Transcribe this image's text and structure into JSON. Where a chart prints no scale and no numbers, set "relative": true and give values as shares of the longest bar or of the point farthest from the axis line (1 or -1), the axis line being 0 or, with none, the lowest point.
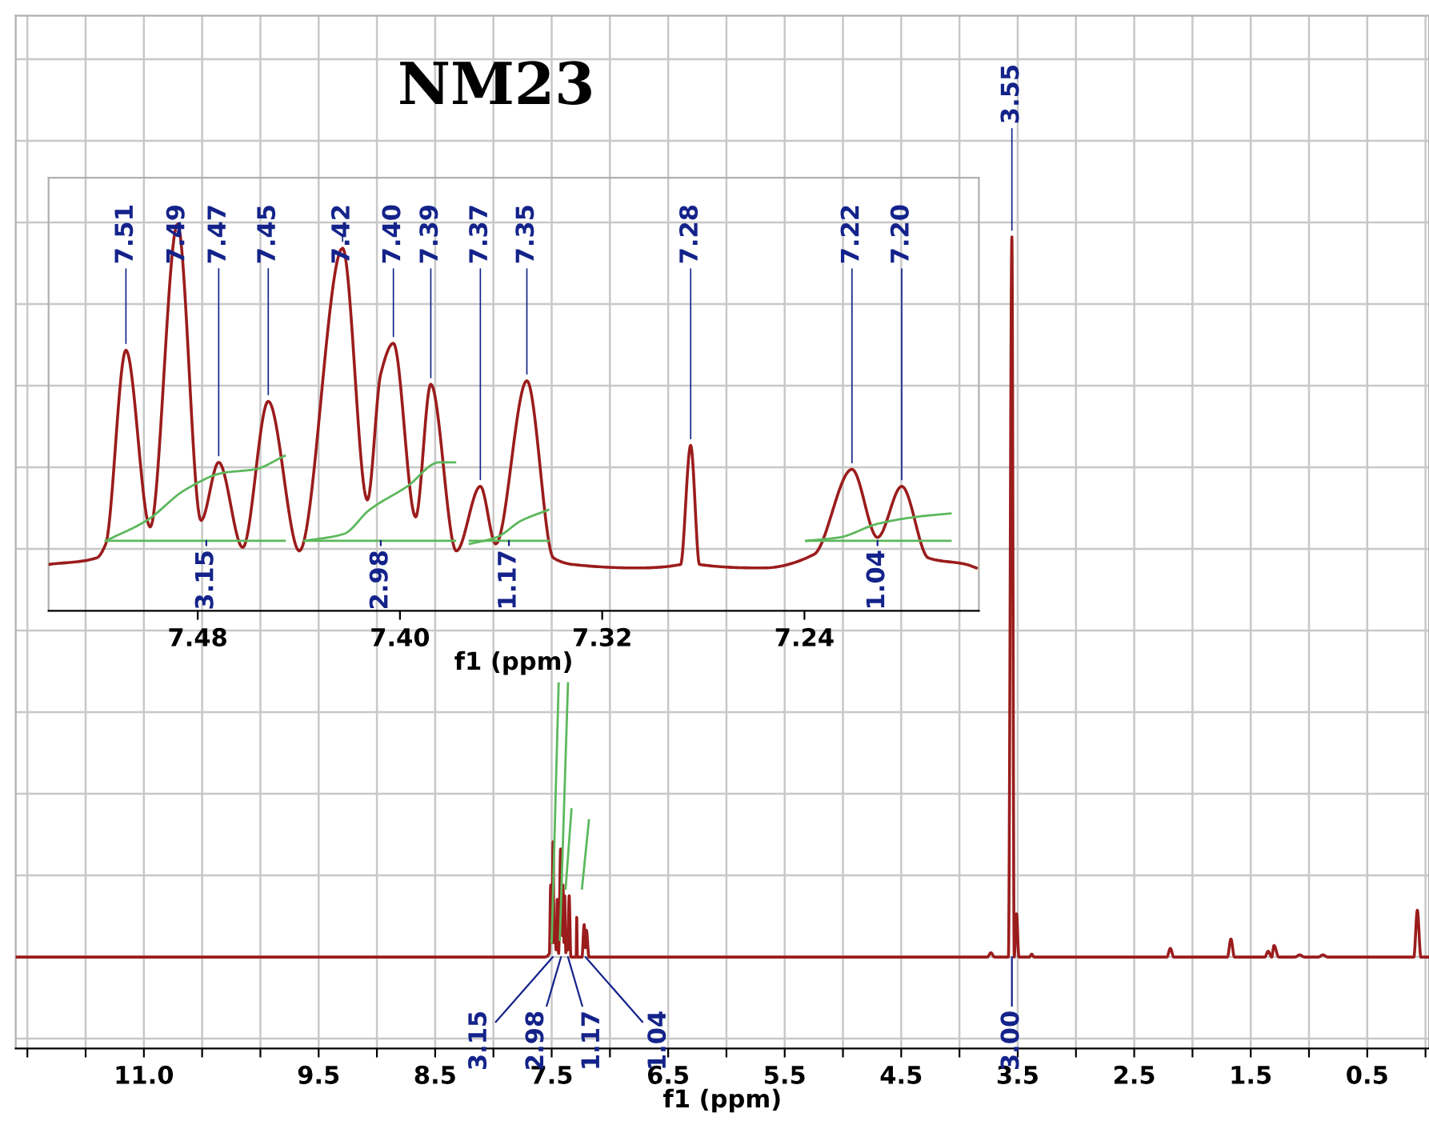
{
  "chart_data": [
    {
      "type": "line",
      "title": "NM23",
      "xlabel": "f1 (ppm)",
      "relative": true,
      "grid": true,
      "xlim": [
        12.1,
        -0.03
      ],
      "xticks": [
        {
          "value": 12,
          "label": null
        },
        {
          "value": 11.5,
          "label": null
        },
        {
          "value": 11,
          "label": "11.0"
        },
        {
          "value": 10.5,
          "label": null
        },
        {
          "value": 10,
          "label": null
        },
        9.5,
        {
          "value": 9,
          "label": null
        },
        8.5,
        {
          "value": 8,
          "label": null
        },
        7.5,
        {
          "value": 7,
          "label": null
        },
        6.5,
        {
          "value": 6,
          "label": null
        },
        5.5,
        {
          "value": 5,
          "label": null
        },
        4.5,
        {
          "value": 4,
          "label": null
        },
        3.5,
        {
          "value": 3,
          "label": null
        },
        2.5,
        {
          "value": 2,
          "label": null
        },
        1.5,
        {
          "value": 1,
          "label": null
        },
        0.5,
        {
          "value": 0,
          "label": null
        }
      ],
      "series": [
        {
          "color": "#9b1c1c",
          "x": [
            12.1,
            7.56,
            7.52,
            7.508,
            7.498,
            7.488,
            7.479,
            7.472,
            7.462,
            7.452,
            7.44,
            7.423,
            7.413,
            7.403,
            7.394,
            7.388,
            7.378,
            7.368,
            7.362,
            7.35,
            7.335,
            7.29,
            7.285,
            7.28,
            7.24,
            7.221,
            7.211,
            7.2015,
            7.18,
            3.76,
            3.73,
            3.7,
            3.58,
            3.55,
            3.53,
            3.51,
            3.49,
            3.4,
            3.38,
            3.36,
            2.22,
            2.19,
            2.16,
            1.7,
            1.67,
            1.64,
            1.38,
            1.35,
            1.32,
            1.3,
            1.26,
            1.12,
            1.08,
            1.04,
            0.92,
            0.88,
            0.84,
            0.1,
            0.07,
            0.04,
            -0.03
          ],
          "values": [
            0,
            0,
            0.005,
            0.1,
            0.02,
            0.16,
            0.02,
            0.05,
            0.01,
            0.08,
            0.005,
            0.15,
            0.03,
            0.1,
            0.02,
            0.085,
            0.006,
            0.037,
            0.01,
            0.085,
            0,
            0,
            0.055,
            0,
            0,
            0.045,
            0.013,
            0.037,
            0,
            0,
            0.006,
            0,
            0,
            1.0,
            0,
            0.06,
            0,
            0,
            0.004,
            0,
            0,
            0.012,
            0,
            0,
            0.025,
            0,
            0,
            0.008,
            0,
            0.016,
            0,
            0,
            0.003,
            0,
            0,
            0.003,
            0,
            0,
            0.065,
            0,
            0
          ]
        },
        {
          "color": "#5cb85c",
          "x": [
            7.5,
            7.44
          ],
          "values": [
            0.02,
            0.38
          ]
        },
        {
          "color": "#5cb85c",
          "x": [
            7.43,
            7.36
          ],
          "values": [
            0.024,
            0.38
          ]
        },
        {
          "color": "#5cb85c",
          "x": [
            7.38,
            7.33
          ],
          "values": [
            0.095,
            0.205
          ]
        },
        {
          "color": "#5cb85c",
          "x": [
            7.24,
            7.18
          ],
          "values": [
            0.095,
            0.19
          ]
        }
      ],
      "annotations": [
        {
          "text": "3.55",
          "x": 3.55,
          "y": 1.0
        },
        {
          "text": "3.15",
          "x": 7.49,
          "y": 0
        },
        {
          "text": "2.98",
          "x": 7.42,
          "y": 0
        },
        {
          "text": "1.17",
          "x": 7.36,
          "y": 0
        },
        {
          "text": "1.04",
          "x": 7.21,
          "y": 0
        },
        {
          "text": "3.00",
          "x": 3.55,
          "y": 0
        }
      ]
    },
    {
      "type": "line",
      "xlabel": "f1 (ppm)",
      "relative": true,
      "xlim": [
        7.539,
        7.171
      ],
      "xticks": [
        7.48,
        {
          "value": 7.4,
          "label": "7.40"
        },
        7.32,
        7.24
      ],
      "series": [
        {
          "color": "#9b1c1c",
          "x": [
            7.539,
            7.52,
            7.5164,
            7.5084,
            7.4988,
            7.488,
            7.4787,
            7.4717,
            7.4622,
            7.4521,
            7.4398,
            7.4227,
            7.4129,
            7.4076,
            7.4026,
            7.3938,
            7.3878,
            7.3777,
            7.3682,
            7.3621,
            7.3498,
            7.3393,
            7.3317,
            7.3066,
            7.289,
            7.285,
            7.2815,
            7.2563,
            7.2362,
            7.2212,
            7.2111,
            7.2015,
            7.191,
            7.1759,
            7.172
          ],
          "values": [
            0.12,
            0.137,
            0.173,
            0.674,
            0.217,
            1.0,
            0.234,
            0.384,
            0.164,
            0.542,
            0.155,
            0.938,
            0.287,
            0.613,
            0.692,
            0.243,
            0.586,
            0.155,
            0.322,
            0.173,
            0.595,
            0.137,
            0.12,
            0.111,
            0.12,
            0.428,
            0.12,
            0.111,
            0.146,
            0.366,
            0.19,
            0.322,
            0.137,
            0.12,
            0.111
          ]
        },
        {
          "color": "#5cb85c",
          "x": [
            7.5164,
            7.5001,
            7.485,
            7.4699,
            7.4574,
            7.4456
          ],
          "values": [
            0.181,
            0.234,
            0.313,
            0.357,
            0.366,
            0.401
          ]
        },
        {
          "color": "#5cb85c",
          "x": [
            7.4378,
            7.4222,
            7.4121,
            7.3971,
            7.3845,
            7.3782
          ],
          "values": [
            0.181,
            0.199,
            0.261,
            0.322,
            0.384,
            0.384
          ]
        },
        {
          "color": "#5cb85c",
          "x": [
            7.3724,
            7.3619,
            7.3518,
            7.3413
          ],
          "values": [
            0.173,
            0.19,
            0.234,
            0.261
          ]
        },
        {
          "color": "#5cb85c",
          "x": [
            7.2393,
            7.2262,
            7.2111,
            7.196,
            7.1822
          ],
          "values": [
            0.181,
            0.19,
            0.225,
            0.243,
            0.252
          ]
        },
        {
          "color": "#5cb85c",
          "x": [
            7.5164,
            7.4456
          ],
          "values": [
            0.181,
            0.181
          ]
        },
        {
          "color": "#5cb85c",
          "x": [
            7.4378,
            7.3782
          ],
          "values": [
            0.181,
            0.181
          ]
        },
        {
          "color": "#5cb85c",
          "x": [
            7.3724,
            7.3413
          ],
          "values": [
            0.181,
            0.181
          ]
        },
        {
          "color": "#5cb85c",
          "x": [
            7.2393,
            7.1822
          ],
          "values": [
            0.181,
            0.181
          ]
        }
      ],
      "annotations": [
        {
          "text": "7.51",
          "x": 7.5084,
          "y": 0.674
        },
        {
          "text": "7.49",
          "x": 7.488,
          "y": 1.0
        },
        {
          "text": "7.47",
          "x": 7.4717,
          "y": 0.384
        },
        {
          "text": "7.45",
          "x": 7.4521,
          "y": 0.542
        },
        {
          "text": "7.42",
          "x": 7.4227,
          "y": 0.938
        },
        {
          "text": "7.40",
          "x": 7.4026,
          "y": 0.692
        },
        {
          "text": "7.39",
          "x": 7.3878,
          "y": 0.586
        },
        {
          "text": "7.37",
          "x": 7.3682,
          "y": 0.322
        },
        {
          "text": "7.35",
          "x": 7.3498,
          "y": 0.595
        },
        {
          "text": "7.28",
          "x": 7.285,
          "y": 0.428
        },
        {
          "text": "7.22",
          "x": 7.2212,
          "y": 0.366
        },
        {
          "text": "7.20",
          "x": 7.2015,
          "y": 0.322
        },
        {
          "text": "3.15",
          "x": 7.4766,
          "y": 0.181
        },
        {
          "text": "2.98",
          "x": 7.4076,
          "y": 0.181
        },
        {
          "text": "1.17",
          "x": 7.3569,
          "y": 0.181
        },
        {
          "text": "1.04",
          "x": 7.2111,
          "y": 0.181
        }
      ]
    }
  ]
}
